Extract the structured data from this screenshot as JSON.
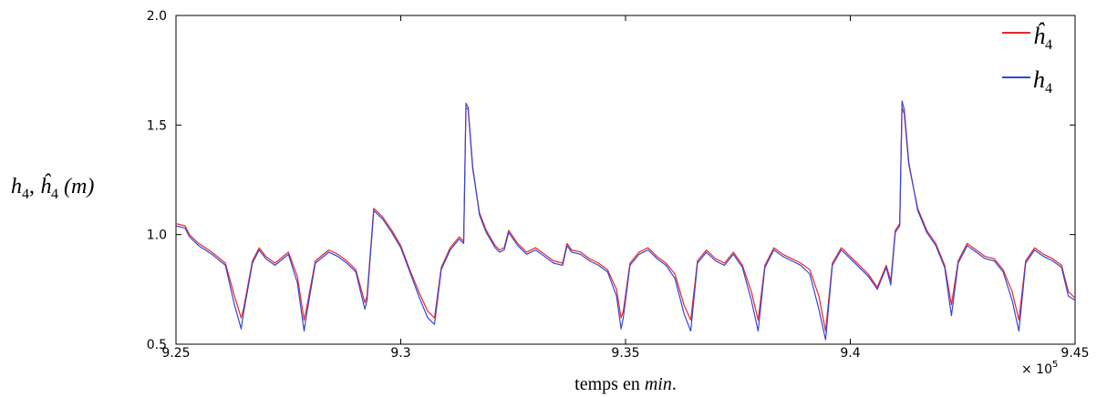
{
  "chart_data": {
    "type": "line",
    "title": "",
    "xlabel": "temps en min.",
    "xlabel_parts": [
      "temps en ",
      "min",
      "."
    ],
    "ylabel": "h4, ĥ4 (m)",
    "ylabel_parts": {
      "h": "h",
      "sub": "4",
      "sep": ", ",
      "hat": "ĥ",
      "sub2": "4",
      "unit": " (m)"
    },
    "x_multiplier": "× 10",
    "x_multiplier_exp": "5",
    "xlim": [
      9.25,
      9.45
    ],
    "ylim": [
      0.5,
      2.0
    ],
    "xticks": [
      9.25,
      9.3,
      9.35,
      9.4,
      9.45
    ],
    "xtick_labels": [
      "9.25",
      "9.3",
      "9.35",
      "9.4",
      "9.45"
    ],
    "yticks": [
      0.5,
      1.0,
      1.5,
      2.0
    ],
    "ytick_labels": [
      "0.5",
      "1.0",
      "1.5",
      "2.0"
    ],
    "grid": false,
    "legend_placement": "top-right",
    "series": [
      {
        "name": "ĥ4",
        "color": "#e8262a",
        "x": [
          9.25,
          9.252,
          9.253,
          9.255,
          9.258,
          9.261,
          9.263,
          9.2645,
          9.265,
          9.267,
          9.2685,
          9.27,
          9.272,
          9.275,
          9.277,
          9.2785,
          9.279,
          9.281,
          9.284,
          9.286,
          9.288,
          9.29,
          9.292,
          9.2925,
          9.294,
          9.296,
          9.298,
          9.3,
          9.302,
          9.304,
          9.306,
          9.3075,
          9.309,
          9.311,
          9.313,
          9.314,
          9.3145,
          9.315,
          9.316,
          9.3175,
          9.319,
          9.321,
          9.322,
          9.323,
          9.324,
          9.326,
          9.328,
          9.33,
          9.332,
          9.334,
          9.336,
          9.337,
          9.338,
          9.34,
          9.342,
          9.344,
          9.346,
          9.348,
          9.349,
          9.3495,
          9.351,
          9.353,
          9.355,
          9.357,
          9.359,
          9.361,
          9.363,
          9.3645,
          9.366,
          9.368,
          9.37,
          9.372,
          9.374,
          9.376,
          9.378,
          9.3795,
          9.381,
          9.383,
          9.385,
          9.387,
          9.389,
          9.391,
          9.393,
          9.3945,
          9.396,
          9.398,
          9.4,
          9.402,
          9.404,
          9.406,
          9.408,
          9.409,
          9.41,
          9.411,
          9.4115,
          9.412,
          9.413,
          9.415,
          9.417,
          9.419,
          9.421,
          9.4225,
          9.424,
          9.426,
          9.428,
          9.43,
          9.432,
          9.434,
          9.436,
          9.4375,
          9.439,
          9.441,
          9.443,
          9.445,
          9.447,
          9.4485,
          9.45
        ],
        "y": [
          1.05,
          1.04,
          1.0,
          0.96,
          0.92,
          0.87,
          0.72,
          0.62,
          0.66,
          0.88,
          0.94,
          0.9,
          0.87,
          0.92,
          0.81,
          0.61,
          0.66,
          0.88,
          0.93,
          0.91,
          0.88,
          0.84,
          0.69,
          0.72,
          1.12,
          1.08,
          1.02,
          0.95,
          0.84,
          0.74,
          0.65,
          0.62,
          0.85,
          0.94,
          0.99,
          0.97,
          1.58,
          1.57,
          1.3,
          1.1,
          1.02,
          0.95,
          0.93,
          0.94,
          1.02,
          0.96,
          0.92,
          0.94,
          0.91,
          0.88,
          0.87,
          0.96,
          0.93,
          0.92,
          0.89,
          0.87,
          0.84,
          0.75,
          0.62,
          0.65,
          0.87,
          0.92,
          0.94,
          0.9,
          0.87,
          0.82,
          0.68,
          0.61,
          0.88,
          0.93,
          0.89,
          0.87,
          0.92,
          0.86,
          0.74,
          0.61,
          0.86,
          0.94,
          0.91,
          0.89,
          0.87,
          0.84,
          0.72,
          0.56,
          0.87,
          0.94,
          0.9,
          0.86,
          0.82,
          0.76,
          0.86,
          0.79,
          1.02,
          1.05,
          1.58,
          1.55,
          1.32,
          1.12,
          1.02,
          0.96,
          0.86,
          0.68,
          0.88,
          0.96,
          0.93,
          0.9,
          0.89,
          0.84,
          0.74,
          0.61,
          0.88,
          0.94,
          0.91,
          0.89,
          0.86,
          0.74,
          0.71
        ]
      },
      {
        "name": "h4",
        "color": "#3446d8",
        "x": [
          9.25,
          9.252,
          9.253,
          9.255,
          9.258,
          9.261,
          9.263,
          9.2645,
          9.265,
          9.267,
          9.2685,
          9.27,
          9.272,
          9.275,
          9.277,
          9.2785,
          9.279,
          9.281,
          9.284,
          9.286,
          9.288,
          9.29,
          9.292,
          9.2925,
          9.294,
          9.296,
          9.298,
          9.3,
          9.302,
          9.304,
          9.306,
          9.3075,
          9.309,
          9.311,
          9.313,
          9.314,
          9.3145,
          9.315,
          9.316,
          9.3175,
          9.319,
          9.321,
          9.322,
          9.323,
          9.324,
          9.326,
          9.328,
          9.33,
          9.332,
          9.334,
          9.336,
          9.337,
          9.338,
          9.34,
          9.342,
          9.344,
          9.346,
          9.348,
          9.349,
          9.3495,
          9.351,
          9.353,
          9.355,
          9.357,
          9.359,
          9.361,
          9.363,
          9.3645,
          9.366,
          9.368,
          9.37,
          9.372,
          9.374,
          9.376,
          9.378,
          9.3795,
          9.381,
          9.383,
          9.385,
          9.387,
          9.389,
          9.391,
          9.393,
          9.3945,
          9.396,
          9.398,
          9.4,
          9.402,
          9.404,
          9.406,
          9.408,
          9.409,
          9.41,
          9.411,
          9.4115,
          9.412,
          9.413,
          9.415,
          9.417,
          9.419,
          9.421,
          9.4225,
          9.424,
          9.426,
          9.428,
          9.43,
          9.432,
          9.434,
          9.436,
          9.4375,
          9.439,
          9.441,
          9.443,
          9.445,
          9.447,
          9.4485,
          9.45
        ],
        "y": [
          1.04,
          1.03,
          0.99,
          0.95,
          0.91,
          0.86,
          0.68,
          0.57,
          0.64,
          0.87,
          0.93,
          0.89,
          0.86,
          0.91,
          0.78,
          0.56,
          0.63,
          0.87,
          0.92,
          0.9,
          0.87,
          0.83,
          0.66,
          0.7,
          1.11,
          1.07,
          1.01,
          0.94,
          0.83,
          0.72,
          0.62,
          0.59,
          0.84,
          0.93,
          0.98,
          0.96,
          1.6,
          1.58,
          1.31,
          1.09,
          1.01,
          0.94,
          0.92,
          0.93,
          1.01,
          0.95,
          0.91,
          0.93,
          0.9,
          0.87,
          0.86,
          0.95,
          0.92,
          0.91,
          0.88,
          0.86,
          0.83,
          0.72,
          0.57,
          0.62,
          0.86,
          0.91,
          0.93,
          0.89,
          0.86,
          0.8,
          0.64,
          0.56,
          0.87,
          0.92,
          0.88,
          0.86,
          0.91,
          0.85,
          0.7,
          0.56,
          0.85,
          0.93,
          0.9,
          0.88,
          0.86,
          0.82,
          0.66,
          0.52,
          0.86,
          0.93,
          0.89,
          0.85,
          0.81,
          0.75,
          0.85,
          0.77,
          1.01,
          1.04,
          1.61,
          1.57,
          1.33,
          1.11,
          1.01,
          0.95,
          0.85,
          0.63,
          0.87,
          0.95,
          0.92,
          0.89,
          0.88,
          0.83,
          0.7,
          0.56,
          0.87,
          0.93,
          0.9,
          0.88,
          0.85,
          0.72,
          0.7
        ]
      }
    ]
  }
}
